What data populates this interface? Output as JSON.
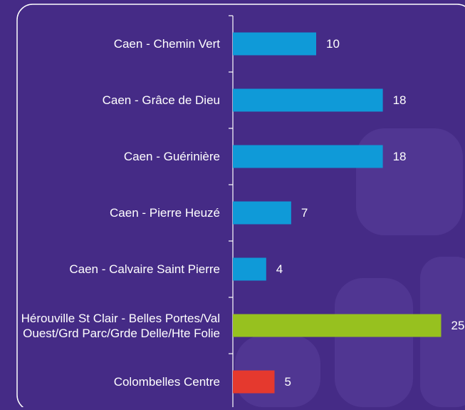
{
  "chart_data": {
    "type": "bar",
    "orientation": "horizontal",
    "categories": [
      "Caen - Chemin Vert",
      "Caen - Grâce de Dieu",
      "Caen - Guérinière",
      "Caen - Pierre Heuzé",
      "Caen - Calvaire Saint Pierre",
      "Hérouville St Clair - Belles Portes/Val Ouest/Grd Parc/Grde Delle/Hte Folie",
      "Colombelles Centre"
    ],
    "values": [
      10,
      18,
      18,
      7,
      4,
      25,
      5
    ],
    "colors": [
      "#0f9ad8",
      "#0f9ad8",
      "#0f9ad8",
      "#0f9ad8",
      "#0f9ad8",
      "#97c11f",
      "#e5392e"
    ]
  }
}
